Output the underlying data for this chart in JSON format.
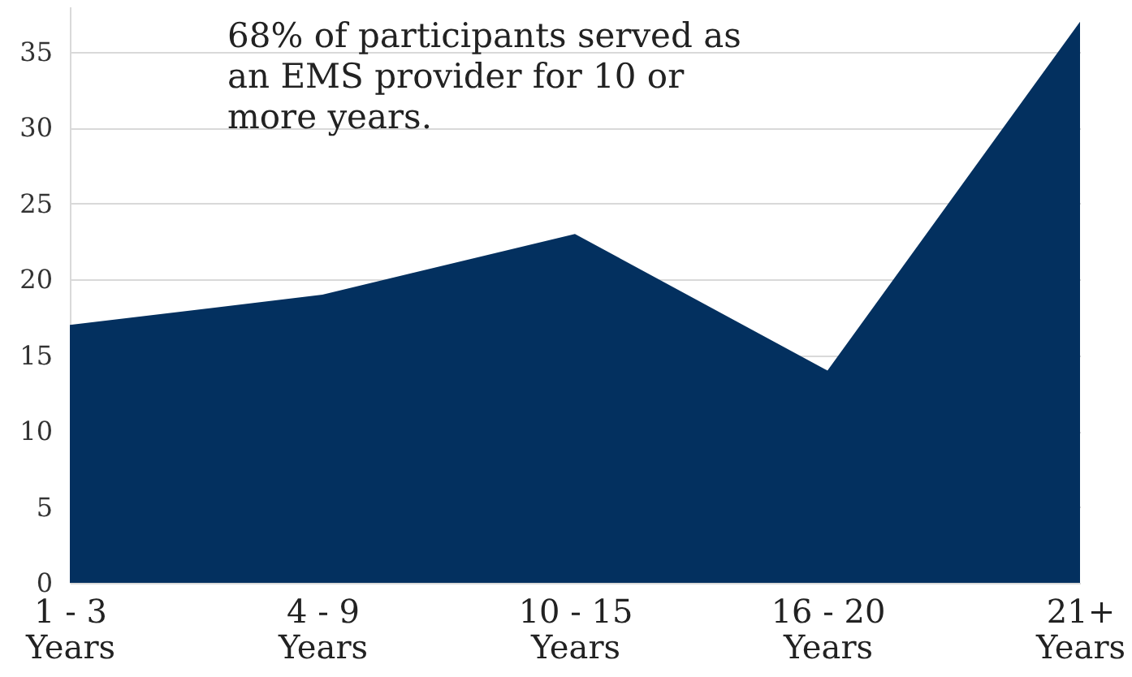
{
  "chart_data": {
    "type": "area",
    "categories": [
      "1 - 3 Years",
      "4 - 9 Years",
      "10 - 15 Years",
      "16 - 20 Years",
      "21+ Years"
    ],
    "values": [
      17,
      19,
      23,
      14,
      37
    ],
    "color": "#03305f",
    "ylim": [
      0,
      38
    ],
    "yticks": [
      0,
      5,
      10,
      15,
      20,
      25,
      30,
      35
    ],
    "grid": "y",
    "annotations": [
      "68% of participants served as an EMS provider for 10 or more years."
    ]
  }
}
